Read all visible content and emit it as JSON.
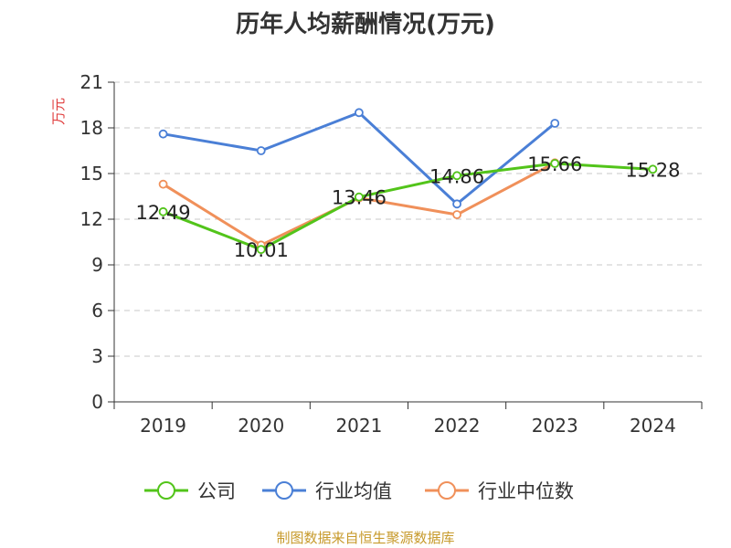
{
  "title": "历年人均薪酬情况(万元)",
  "footer": "制图数据来自恒生聚源数据库",
  "chart_data": {
    "type": "line",
    "title": "历年人均薪酬情况(万元)",
    "ylabel": "万元",
    "xlabel": "",
    "categories": [
      "2019",
      "2020",
      "2021",
      "2022",
      "2023",
      "2024"
    ],
    "ylim": [
      0,
      21
    ],
    "yticks": [
      0,
      3,
      6,
      9,
      12,
      15,
      18,
      21
    ],
    "grid": "horizontal dashed",
    "legend": "bottom",
    "series": [
      {
        "name": "公司",
        "color": "#52c41a",
        "values": [
          12.49,
          10.01,
          13.46,
          14.86,
          15.66,
          15.28
        ],
        "labels": [
          "12.49",
          "10.01",
          "13.46",
          "14.86",
          "15.66",
          "15.28"
        ]
      },
      {
        "name": "行业均值",
        "color": "#4a7fd6",
        "values": [
          17.6,
          16.5,
          19.0,
          13.0,
          18.3,
          null
        ]
      },
      {
        "name": "行业中位数",
        "color": "#f0905a",
        "values": [
          14.3,
          10.3,
          13.4,
          12.3,
          15.7,
          null
        ]
      }
    ]
  }
}
